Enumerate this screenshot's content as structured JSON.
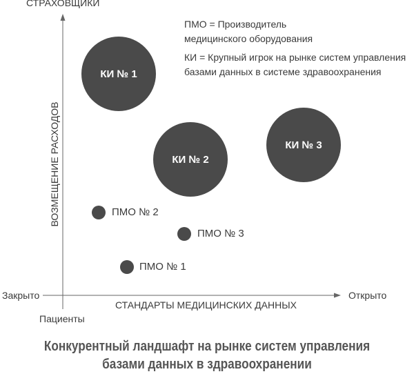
{
  "axes": {
    "y_top": "СТРАХОВЩИКИ",
    "y_title": "ВОЗМЕЩЕНИЕ РАСХОДОВ",
    "x_left": "Закрыто",
    "x_right": "Открыто",
    "x_title": "СТАНДАРТЫ МЕДИЦИНСКИХ ДАННЫХ",
    "x_bottom": "Пациенты"
  },
  "legend": {
    "pmo_line1": "ПМО = Производитель",
    "pmo_line2": "медицинского оборудования",
    "ki_line1": "КИ = Крупный игрок на рынке систем управления",
    "ki_line2": "базами данных в системе здравоохранения"
  },
  "major_players": [
    {
      "label": "КИ № 1"
    },
    {
      "label": "КИ № 2"
    },
    {
      "label": "КИ № 3"
    }
  ],
  "device_makers": [
    {
      "label": "ПМО № 2"
    },
    {
      "label": "ПМО № 3"
    },
    {
      "label": "ПМО № 1"
    }
  ],
  "caption": {
    "line1": "Конкурентный ландшафт на рынке систем управления",
    "line2": "базами данных в здравоохранении"
  },
  "colors": {
    "bubble": "#4a4a4a",
    "axis": "#666666"
  }
}
